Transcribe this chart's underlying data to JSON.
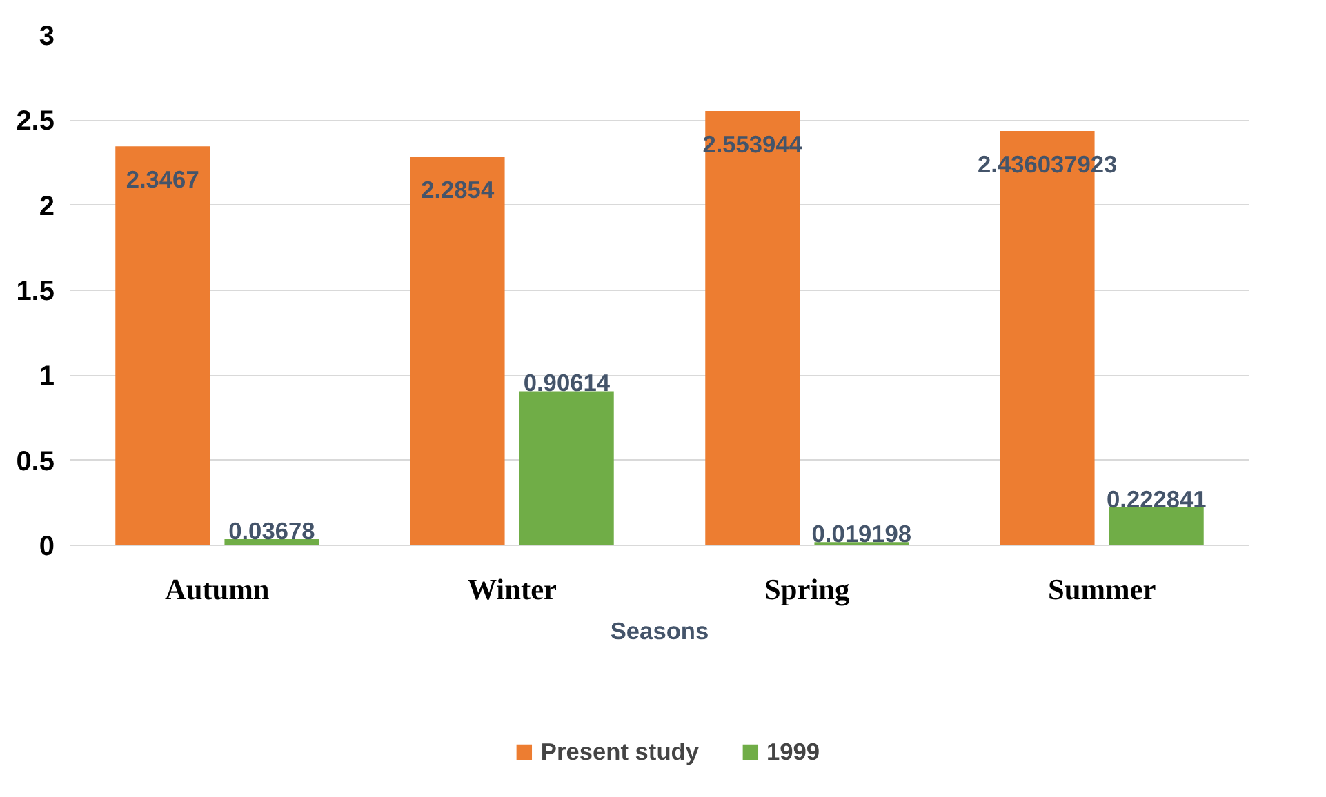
{
  "chart_data": {
    "type": "bar",
    "xlabel": "Seasons",
    "categories": [
      "Autumn",
      "Winter",
      "Spring",
      "Summer"
    ],
    "series": [
      {
        "name": "Present study",
        "color": "#ed7d31",
        "values": [
          2.3467,
          2.2854,
          2.553944,
          2.436037923
        ]
      },
      {
        "name": "1999",
        "color": "#70ad47",
        "values": [
          0.03678,
          0.90614,
          0.019198,
          0.222841
        ]
      }
    ],
    "ylim": [
      0,
      3
    ],
    "yticks": [
      0,
      0.5,
      1,
      1.5,
      2,
      2.5,
      3
    ],
    "grid": "y",
    "legend": "bottom",
    "data_labels": true
  }
}
